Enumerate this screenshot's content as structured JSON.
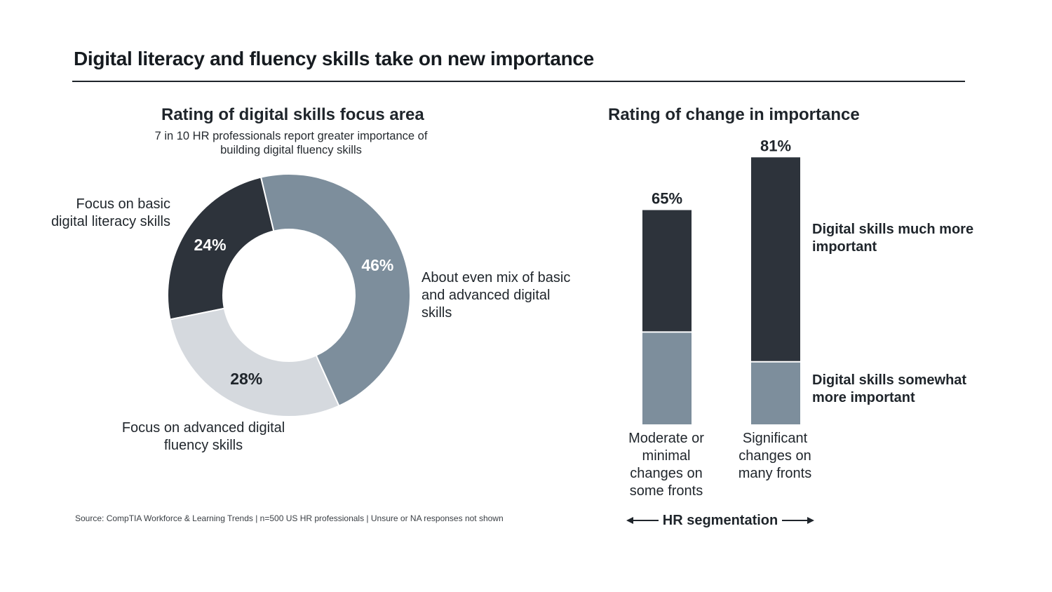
{
  "title": "Digital literacy and fluency skills take on new importance",
  "source": "Source: CompTIA Workforce & Learning Trends | n=500 US HR professionals | Unsure or NA responses not shown",
  "chart_data": [
    {
      "type": "pie",
      "variant": "donut",
      "title": "Rating of digital skills focus area",
      "subtitle": "7 in 10 HR professionals report greater importance of building digital fluency skills",
      "categories": [
        "Focus on basic digital literacy skills",
        "About even mix of basic and advanced digital skills",
        "Focus on advanced digital fluency skills"
      ],
      "values": [
        24,
        46,
        28
      ],
      "value_labels": [
        "24%",
        "46%",
        "28%"
      ],
      "colors": [
        "#2d333b",
        "#7d8e9c",
        "#d5d9de"
      ]
    },
    {
      "type": "bar",
      "stacked": true,
      "title": "Rating of change in importance",
      "categories": [
        "Moderate or minimal changes on some fronts",
        "Significant changes on many fronts"
      ],
      "xlabel": "HR segmentation",
      "totals": [
        65,
        81
      ],
      "total_labels": [
        "65%",
        "81%"
      ],
      "ylim": [
        0,
        100
      ],
      "series": [
        {
          "name": "Digital skills somewhat more important",
          "values": [
            28,
            19
          ],
          "color": "#7d8e9c"
        },
        {
          "name": "Digital skills much more important",
          "values": [
            37,
            62
          ],
          "color": "#2d333b"
        }
      ]
    }
  ]
}
